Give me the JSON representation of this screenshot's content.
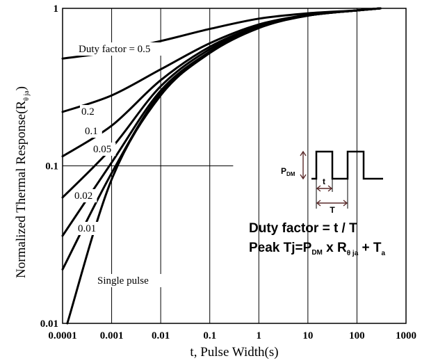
{
  "chart_data": {
    "type": "line",
    "x_scale": "log",
    "y_scale": "log",
    "xlim": [
      0.0001,
      1000
    ],
    "ylim": [
      0.01,
      1
    ],
    "grid": true,
    "xlabel": "t, Pulse Width(s)",
    "ylabel": {
      "main": "Normalized Thermal Response(R",
      "sub": "θ ja",
      "close": ")"
    },
    "x_ticks": [
      {
        "value": 0.0001,
        "label": "0.0001"
      },
      {
        "value": 0.001,
        "label": "0.001"
      },
      {
        "value": 0.01,
        "label": "0.01"
      },
      {
        "value": 0.1,
        "label": "0.1"
      },
      {
        "value": 1,
        "label": "1"
      },
      {
        "value": 10,
        "label": "10"
      },
      {
        "value": 100,
        "label": "100"
      },
      {
        "value": 1000,
        "label": "1000"
      }
    ],
    "y_ticks": [
      {
        "value": 0.01,
        "label": "0.01"
      },
      {
        "value": 0.1,
        "label": "0.1"
      },
      {
        "value": 1,
        "label": "1"
      }
    ],
    "series": [
      {
        "name": "Duty factor = 0.5",
        "x": [
          0.0001,
          0.001,
          0.01,
          0.1,
          1,
          10,
          100,
          300
        ],
        "y": [
          0.48,
          0.53,
          0.62,
          0.74,
          0.86,
          0.93,
          0.97,
          1.0
        ]
      },
      {
        "name": "0.2",
        "x": [
          0.0001,
          0.001,
          0.01,
          0.1,
          1,
          10,
          100,
          300
        ],
        "y": [
          0.22,
          0.28,
          0.41,
          0.6,
          0.79,
          0.91,
          0.97,
          1.0
        ]
      },
      {
        "name": "0.1",
        "x": [
          0.0001,
          0.001,
          0.01,
          0.1,
          1,
          10,
          100,
          300
        ],
        "y": [
          0.115,
          0.18,
          0.35,
          0.57,
          0.77,
          0.9,
          0.97,
          1.0
        ]
      },
      {
        "name": "0.05",
        "x": [
          0.0001,
          0.001,
          0.01,
          0.1,
          1,
          10,
          100,
          300
        ],
        "y": [
          0.063,
          0.13,
          0.32,
          0.55,
          0.76,
          0.9,
          0.97,
          1.0
        ]
      },
      {
        "name": "0.02",
        "x": [
          0.0001,
          0.001,
          0.01,
          0.1,
          1,
          10,
          100,
          300
        ],
        "y": [
          0.036,
          0.105,
          0.3,
          0.53,
          0.76,
          0.9,
          0.97,
          1.0
        ]
      },
      {
        "name": "0.01",
        "x": [
          0.0001,
          0.001,
          0.01,
          0.1,
          1,
          10,
          100,
          300
        ],
        "y": [
          0.022,
          0.09,
          0.29,
          0.53,
          0.76,
          0.9,
          0.97,
          1.0
        ]
      },
      {
        "name": "Single pulse",
        "x": [
          0.000125,
          0.001,
          0.01,
          0.1,
          1,
          10,
          100,
          300
        ],
        "y": [
          0.01,
          0.082,
          0.28,
          0.52,
          0.75,
          0.9,
          0.97,
          1.0
        ]
      }
    ],
    "inset": {
      "pdm_label": "P",
      "pdm_sub": "DM",
      "t_label": "t",
      "T_label": "T",
      "formula1": "Duty factor = t / T",
      "formula2": {
        "a": "Peak Tj=P",
        "a_sub": "DM",
        "b": " x R",
        "b_sub": "θ ja",
        "c": " + T",
        "c_sub": "a"
      }
    }
  }
}
